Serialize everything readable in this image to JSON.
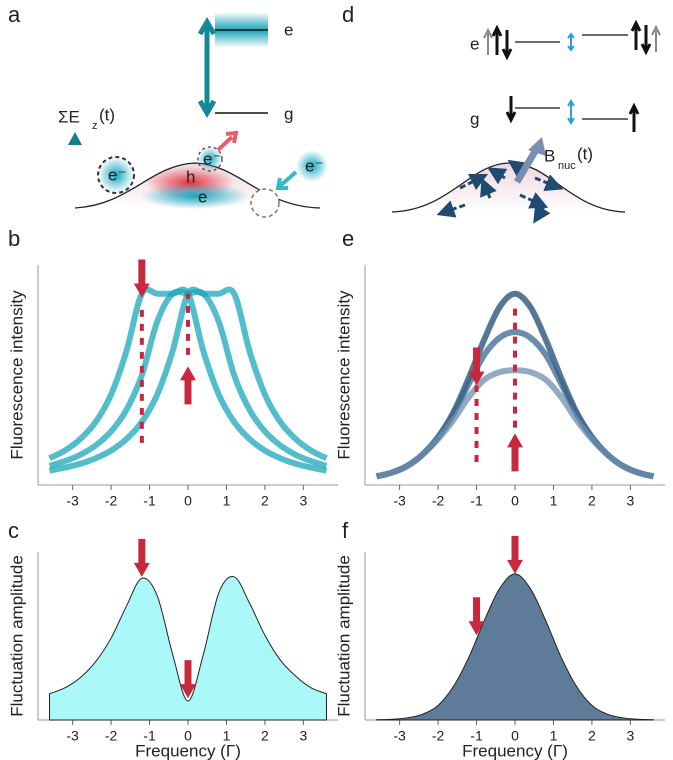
{
  "panel_labels": [
    "a",
    "b",
    "c",
    "d",
    "e",
    "f"
  ],
  "diagram_a": {
    "levels": [
      "e",
      "g"
    ],
    "field": "ΣE",
    "field_sub": "z",
    "field_arg": "(t)",
    "carriers": [
      "h",
      "e"
    ],
    "electrons": [
      "e⁻",
      "e⁻",
      "e⁻"
    ]
  },
  "diagram_d": {
    "levels": [
      "e",
      "g"
    ],
    "field": "B",
    "field_sub": "nuc",
    "field_arg": "(t)"
  },
  "chart_data": [
    {
      "type": "line",
      "ylabel": "Fluorescence intensity",
      "x": [
        -3.6,
        -3.2,
        -2.8,
        -2.4,
        -2.0,
        -1.6,
        -1.2,
        -0.8,
        -0.4,
        0,
        0.4,
        0.8,
        1.2,
        1.6,
        2.0,
        2.4,
        2.8,
        3.2,
        3.6
      ],
      "series": [
        {
          "color": "#1ba7ba",
          "values": [
            0.14,
            0.18,
            0.24,
            0.33,
            0.473,
            0.7,
            1,
            1,
            1,
            1,
            0.7,
            0.473,
            0.33,
            0.24,
            0.18,
            0.14,
            0.111,
            0.091,
            0.075
          ]
        },
        {
          "color": "#1ba7ba",
          "values": [
            0.1,
            0.125,
            0.158,
            0.207,
            0.28,
            0.393,
            0.574,
            0.854,
            1,
            1,
            1,
            0.854,
            0.574,
            0.393,
            0.28,
            0.207,
            0.158,
            0.125,
            0.1
          ]
        },
        {
          "color": "#1ba7ba",
          "values": [
            0.075,
            0.091,
            0.111,
            0.14,
            0.18,
            0.24,
            0.33,
            0.473,
            0.7,
            1,
            1,
            1,
            1,
            0.7,
            0.473,
            0.33,
            0.24,
            0.18,
            0.14
          ]
        }
      ],
      "xlim": [
        -3.9,
        3.9
      ],
      "ylim": [
        0,
        1.15
      ],
      "xticks": [
        -3,
        -2,
        -1,
        0,
        1,
        2,
        3
      ],
      "arrows": [
        {
          "x": -1.2,
          "y": 0.98,
          "dir": "down"
        },
        {
          "x": 0,
          "y": 0.62,
          "dir": "up"
        }
      ],
      "guides": [
        {
          "x": -1.2,
          "from": 0.22,
          "to": 0.95
        },
        {
          "x": 0,
          "from": 0.68,
          "to": 1.0
        }
      ]
    },
    {
      "type": "area",
      "ylabel": "Fluctuation amplitude",
      "xlabel": "Frequency (Γ)",
      "x": [
        -3.6,
        -3.2,
        -2.8,
        -2.4,
        -2.0,
        -1.6,
        -1.2,
        -0.8,
        -0.4,
        0,
        0.4,
        0.8,
        1.2,
        1.6,
        2.0,
        2.4,
        2.8,
        3.2,
        3.6
      ],
      "series": [
        {
          "color": "#aaf8f8",
          "values": [
            0.18,
            0.22,
            0.29,
            0.4,
            0.56,
            0.78,
            0.97,
            0.85,
            0.45,
            0.13,
            0.45,
            0.87,
            0.98,
            0.8,
            0.58,
            0.41,
            0.3,
            0.22,
            0.18
          ]
        }
      ],
      "xlim": [
        -3.9,
        3.9
      ],
      "ylim": [
        0,
        1.15
      ],
      "xticks": [
        -3,
        -2,
        -1,
        0,
        1,
        2,
        3
      ],
      "arrows": [
        {
          "x": -1.2,
          "y": 0.98,
          "dir": "down"
        },
        {
          "x": 0,
          "y": 0.15,
          "dir": "down"
        }
      ]
    },
    {
      "type": "line",
      "ylabel": "Fluorescence intensity",
      "x": [
        -3.6,
        -3.2,
        -2.8,
        -2.4,
        -2.0,
        -1.6,
        -1.2,
        -0.8,
        -0.4,
        0,
        0.4,
        0.8,
        1.2,
        1.6,
        2.0,
        2.4,
        2.8,
        3.2,
        3.6
      ],
      "series": [
        {
          "color": "#1f4a72",
          "values": [
            0.045,
            0.065,
            0.1,
            0.16,
            0.25,
            0.38,
            0.56,
            0.76,
            0.93,
            1,
            0.93,
            0.76,
            0.56,
            0.38,
            0.25,
            0.16,
            0.1,
            0.065,
            0.045
          ]
        },
        {
          "color": "#3a6690",
          "values": [
            0.045,
            0.065,
            0.1,
            0.16,
            0.25,
            0.37,
            0.53,
            0.68,
            0.77,
            0.8,
            0.77,
            0.68,
            0.53,
            0.37,
            0.25,
            0.16,
            0.1,
            0.065,
            0.045
          ]
        },
        {
          "color": "#6f8fae",
          "values": [
            0.045,
            0.065,
            0.1,
            0.16,
            0.24,
            0.34,
            0.46,
            0.55,
            0.59,
            0.6,
            0.59,
            0.55,
            0.46,
            0.34,
            0.24,
            0.16,
            0.1,
            0.065,
            0.045
          ]
        }
      ],
      "xlim": [
        -3.9,
        3.9
      ],
      "ylim": [
        0,
        1.15
      ],
      "xticks": [
        -3,
        -2,
        -1,
        0,
        1,
        2,
        3
      ],
      "arrows": [
        {
          "x": -1,
          "y": 0.52,
          "dir": "down"
        },
        {
          "x": 0,
          "y": 0.27,
          "dir": "up"
        }
      ],
      "guides": [
        {
          "x": -1,
          "from": 0.12,
          "to": 0.52
        },
        {
          "x": 0,
          "from": 0.3,
          "to": 0.95
        }
      ]
    },
    {
      "type": "area",
      "ylabel": "Fluctuation amplitude",
      "xlabel": "Frequency (Γ)",
      "x": [
        -3.6,
        -3.2,
        -2.8,
        -2.4,
        -2.0,
        -1.6,
        -1.2,
        -0.8,
        -0.4,
        0,
        0.4,
        0.8,
        1.2,
        1.6,
        2.0,
        2.4,
        2.8,
        3.2,
        3.6
      ],
      "series": [
        {
          "color": "#5e7b99",
          "values": [
            0.002,
            0.005,
            0.015,
            0.04,
            0.1,
            0.23,
            0.43,
            0.68,
            0.9,
            1,
            0.9,
            0.68,
            0.43,
            0.23,
            0.1,
            0.04,
            0.015,
            0.005,
            0.002
          ]
        }
      ],
      "xlim": [
        -3.9,
        3.9
      ],
      "ylim": [
        0,
        1.15
      ],
      "xticks": [
        -3,
        -2,
        -1,
        0,
        1,
        2,
        3
      ],
      "arrows": [
        {
          "x": 0,
          "y": 1.0,
          "dir": "down"
        },
        {
          "x": -1,
          "y": 0.58,
          "dir": "down"
        }
      ]
    }
  ]
}
